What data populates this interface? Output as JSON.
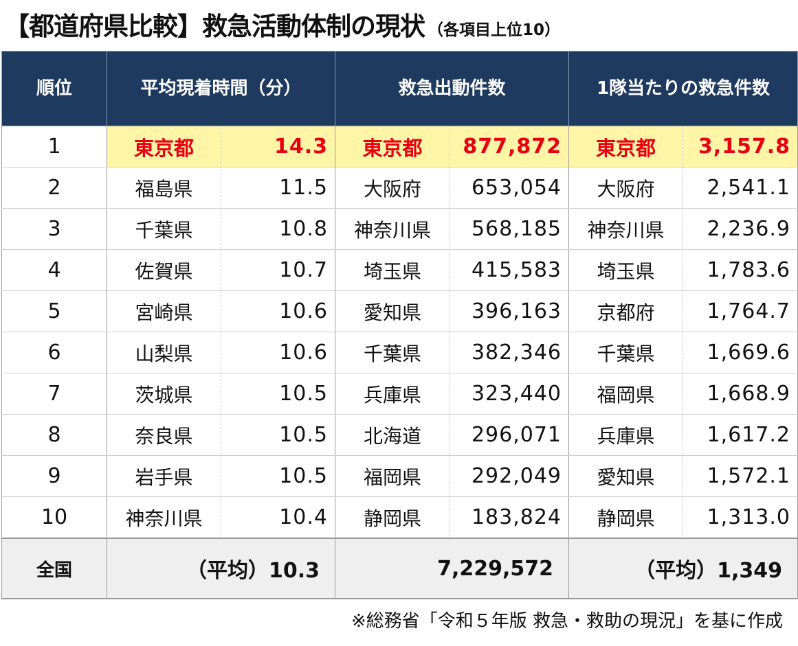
{
  "title": {
    "main": "【都道府県比較】救急活動体制の現状",
    "sub": "（各項目上位10）"
  },
  "headers": {
    "rank": "順位",
    "time": "平均現着時間（分）",
    "dispatch": "救急出動件数",
    "per_team": "1隊当たりの救急件数"
  },
  "rows": [
    {
      "rank": "1",
      "time_pref": "東京都",
      "time_val": "14.3",
      "disp_pref": "東京都",
      "disp_val": "877,872",
      "team_pref": "東京都",
      "team_val": "3,157.8"
    },
    {
      "rank": "2",
      "time_pref": "福島県",
      "time_val": "11.5",
      "disp_pref": "大阪府",
      "disp_val": "653,054",
      "team_pref": "大阪府",
      "team_val": "2,541.1"
    },
    {
      "rank": "3",
      "time_pref": "千葉県",
      "time_val": "10.8",
      "disp_pref": "神奈川県",
      "disp_val": "568,185",
      "team_pref": "神奈川県",
      "team_val": "2,236.9"
    },
    {
      "rank": "4",
      "time_pref": "佐賀県",
      "time_val": "10.7",
      "disp_pref": "埼玉県",
      "disp_val": "415,583",
      "team_pref": "埼玉県",
      "team_val": "1,783.6"
    },
    {
      "rank": "5",
      "time_pref": "宮崎県",
      "time_val": "10.6",
      "disp_pref": "愛知県",
      "disp_val": "396,163",
      "team_pref": "京都府",
      "team_val": "1,764.7"
    },
    {
      "rank": "6",
      "time_pref": "山梨県",
      "time_val": "10.6",
      "disp_pref": "千葉県",
      "disp_val": "382,346",
      "team_pref": "千葉県",
      "team_val": "1,669.6"
    },
    {
      "rank": "7",
      "time_pref": "茨城県",
      "time_val": "10.5",
      "disp_pref": "兵庫県",
      "disp_val": "323,440",
      "team_pref": "福岡県",
      "team_val": "1,668.9"
    },
    {
      "rank": "8",
      "time_pref": "奈良県",
      "time_val": "10.5",
      "disp_pref": "北海道",
      "disp_val": "296,071",
      "team_pref": "兵庫県",
      "team_val": "1,617.2"
    },
    {
      "rank": "9",
      "time_pref": "岩手県",
      "time_val": "10.5",
      "disp_pref": "福岡県",
      "disp_val": "292,049",
      "team_pref": "愛知県",
      "team_val": "1,572.1"
    },
    {
      "rank": "10",
      "time_pref": "神奈川県",
      "time_val": "10.4",
      "disp_pref": "静岡県",
      "disp_val": "183,824",
      "team_pref": "静岡県",
      "team_val": "1,313.0"
    }
  ],
  "total": {
    "label": "全国",
    "time": "（平均）10.3",
    "dispatch": "7,229,572",
    "per_team": "（平均）1,349"
  },
  "note": "※総務省「令和５年版 救急・救助の現況」を基に作成",
  "colors": {
    "header_bg": "#1f3a5f",
    "highlight_bg": "#fff5a6",
    "highlight_text": "#e60012",
    "total_bg": "#efefef"
  }
}
